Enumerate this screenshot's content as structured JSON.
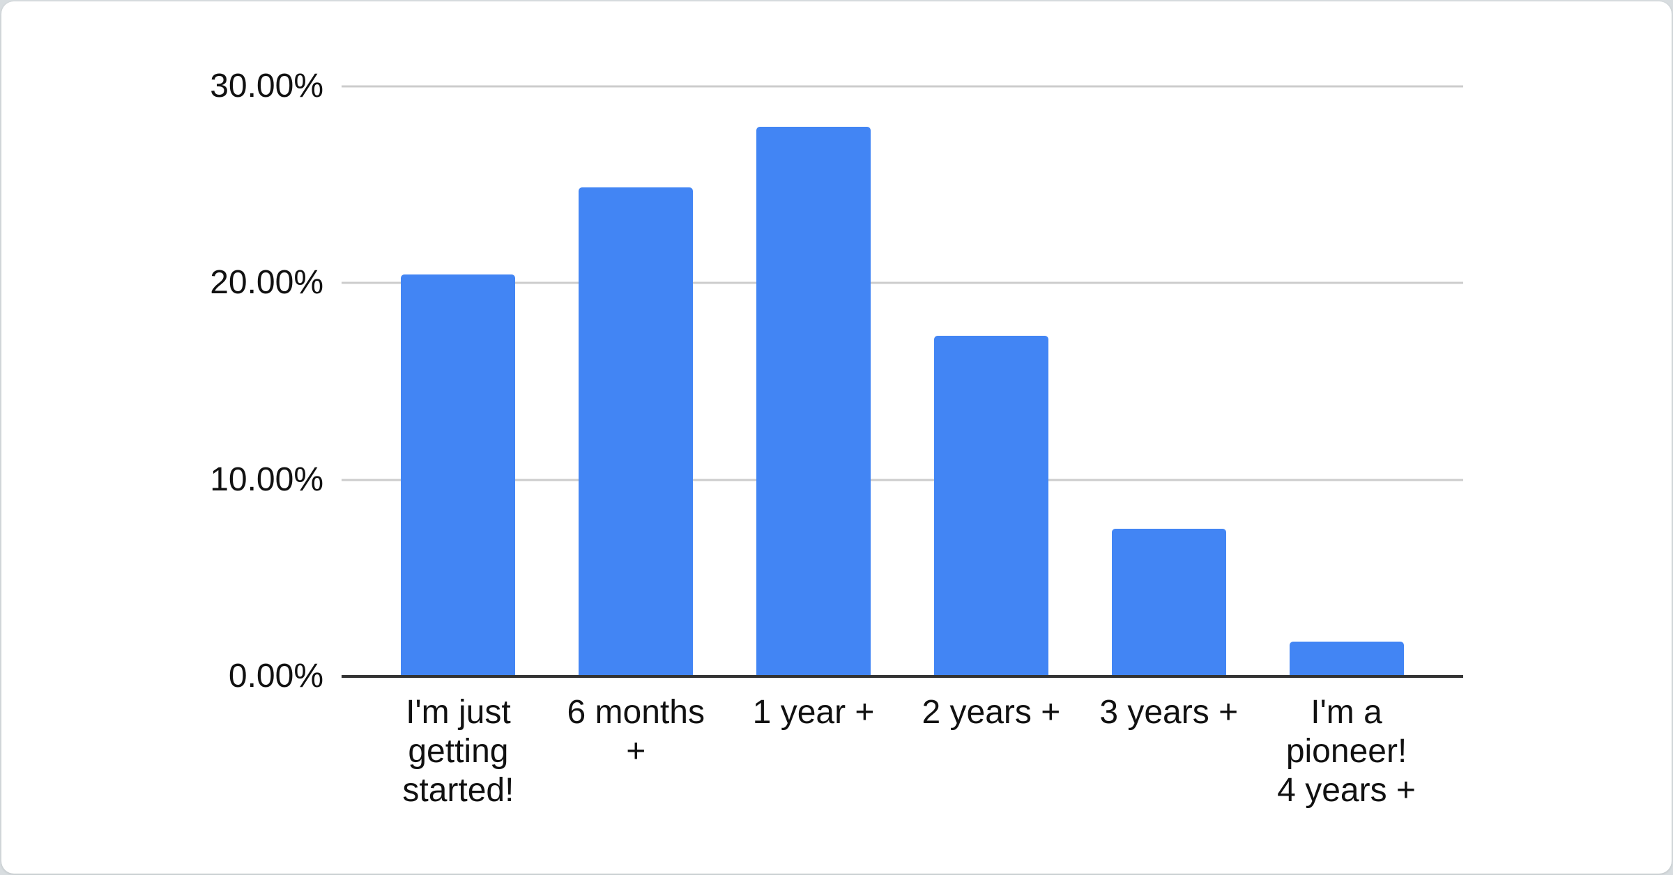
{
  "window": {
    "outer_background": "#d8dde0",
    "card_background": "#ffffff"
  },
  "chart_data": {
    "type": "bar",
    "title": "",
    "xlabel": "",
    "ylabel": "",
    "categories": [
      "I'm just getting started!",
      "6 months +",
      "1 year +",
      "2 years +",
      "3 years +",
      "I'm a pioneer! 4 years +"
    ],
    "category_lines": [
      [
        "I'm just",
        "getting",
        "started!"
      ],
      [
        "6 months",
        "+"
      ],
      [
        "1 year +"
      ],
      [
        "2 years +"
      ],
      [
        "3 years +"
      ],
      [
        "I'm a",
        "pioneer!",
        "4 years +"
      ]
    ],
    "values": [
      20.45,
      24.87,
      27.95,
      17.32,
      7.51,
      1.77
    ],
    "value_format": "percent",
    "ylim": [
      0,
      30
    ],
    "y_ticks": [
      {
        "label": "30.00%",
        "value": 30
      },
      {
        "label": "20.00%",
        "value": 20
      },
      {
        "label": "10.00%",
        "value": 10
      },
      {
        "label": "0.00%",
        "value": 0
      }
    ],
    "grid": true,
    "legend_position": "none",
    "colors": {
      "bar": "#4285f4",
      "gridline": "#cccccc",
      "axis_line": "#333333",
      "label_text": "#111111"
    }
  }
}
